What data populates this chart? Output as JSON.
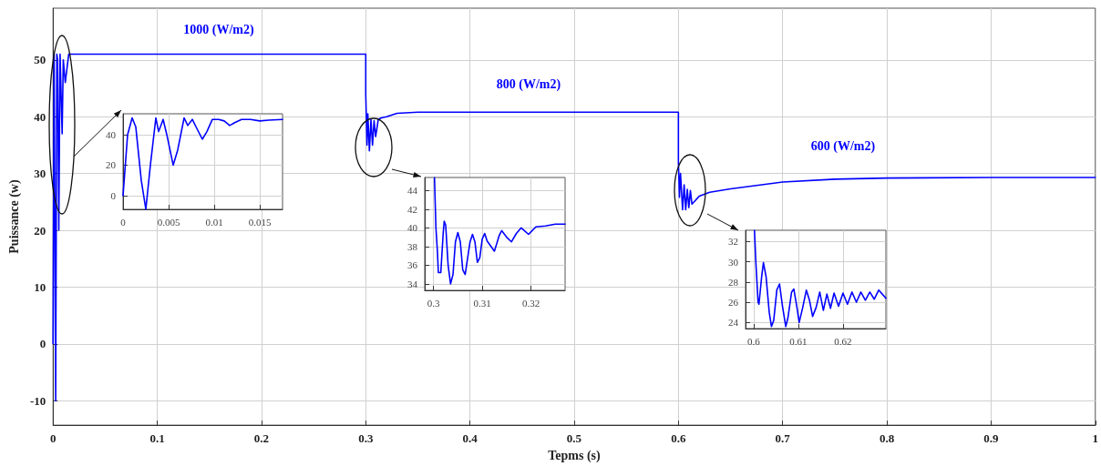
{
  "chart_data": [
    {
      "type": "line",
      "xlabel": "Tepms (s)",
      "ylabel": "Puissance (w)",
      "xlim": [
        0,
        1
      ],
      "ylim": [
        -14.3,
        59.1
      ],
      "xticks": [
        0,
        0.1,
        0.2,
        0.3,
        0.4,
        0.5,
        0.6,
        0.7,
        0.8,
        0.9,
        1
      ],
      "yticks": [
        -10,
        0,
        10,
        20,
        30,
        40,
        50
      ],
      "grid": true,
      "marker": "none",
      "line_style": "solid",
      "annotations": [
        "1000 (W/m2)",
        "800 (W/m2)",
        "600 (W/m2)"
      ],
      "series": [
        {
          "color": "#0000ff",
          "x": [
            0,
            0.001,
            0.0025,
            0.0036,
            0.0044,
            0.0055,
            0.0067,
            0.0087,
            0.0098,
            0.0117,
            0.015,
            0.3,
            0.3,
            0.3012,
            0.302,
            0.3035,
            0.305,
            0.3065,
            0.308,
            0.3095,
            0.312,
            0.315,
            0.32,
            0.33,
            0.35,
            0.6,
            0.6,
            0.601,
            0.602,
            0.604,
            0.6055,
            0.607,
            0.6085,
            0.61,
            0.6115,
            0.613,
            0.62,
            0.63,
            0.65,
            0.7,
            0.75,
            0.8,
            0.9,
            1
          ],
          "values": [
            0,
            51,
            -10,
            51,
            50,
            20,
            51,
            37,
            50,
            46,
            51,
            51,
            44,
            35,
            40.5,
            34,
            39.5,
            35,
            39.3,
            36.5,
            39.5,
            39.8,
            40,
            40.6,
            40.8,
            40.8,
            32,
            25.8,
            30,
            23.6,
            28,
            23.6,
            27.2,
            24,
            27,
            24.6,
            26,
            26.7,
            27.3,
            28.5,
            29,
            29.2,
            29.3,
            29.3
          ]
        }
      ]
    },
    {
      "type": "line",
      "xlim": [
        0,
        0.0175
      ],
      "ylim": [
        -9,
        53.7
      ],
      "xticks": [
        0,
        0.005,
        0.01,
        0.015
      ],
      "yticks": [
        0,
        20,
        40
      ],
      "grid": true,
      "marker": "none",
      "line_style": "solid",
      "series": [
        {
          "color": "#0000ff",
          "x": [
            0,
            0.0005,
            0.001,
            0.0014,
            0.002,
            0.0025,
            0.003,
            0.0036,
            0.0039,
            0.0044,
            0.0048,
            0.0055,
            0.006,
            0.0067,
            0.0071,
            0.0076,
            0.0081,
            0.0087,
            0.0092,
            0.0098,
            0.0105,
            0.0111,
            0.0117,
            0.0123,
            0.013,
            0.014,
            0.015,
            0.016,
            0.0175
          ],
          "values": [
            0,
            40,
            51,
            45,
            10,
            -9,
            20,
            51,
            42,
            50,
            40,
            20,
            30,
            51,
            46,
            50,
            44,
            37,
            42,
            50,
            50,
            49,
            46,
            48,
            50,
            50,
            49,
            49.5,
            50
          ]
        }
      ]
    },
    {
      "type": "line",
      "xlim": [
        0.2982,
        0.327
      ],
      "ylim": [
        33.3,
        45.4
      ],
      "xticks": [
        0.3,
        0.31,
        0.32
      ],
      "yticks": [
        34,
        36,
        38,
        40,
        42,
        44
      ],
      "grid": true,
      "marker": "none",
      "line_style": "solid",
      "series": [
        {
          "color": "#0000ff",
          "x": [
            0.3002,
            0.3005,
            0.3008,
            0.301,
            0.3015,
            0.302,
            0.3022,
            0.3025,
            0.303,
            0.3035,
            0.304,
            0.3045,
            0.305,
            0.3055,
            0.306,
            0.3065,
            0.3075,
            0.308,
            0.3085,
            0.309,
            0.3095,
            0.31,
            0.3105,
            0.311,
            0.3125,
            0.3135,
            0.314,
            0.315,
            0.316,
            0.317,
            0.318,
            0.3195,
            0.321,
            0.323,
            0.325,
            0.327
          ],
          "values": [
            45.4,
            40,
            37.5,
            35.2,
            35.2,
            39.5,
            40.7,
            40.3,
            36,
            34,
            35,
            38.5,
            39.5,
            38.5,
            35.5,
            35,
            38.5,
            39.3,
            38.5,
            36.3,
            36.8,
            38.8,
            39.4,
            38.6,
            37.5,
            39.2,
            39.7,
            39,
            38.5,
            39.4,
            40,
            39.3,
            40.1,
            40.2,
            40.4,
            40.4
          ]
        }
      ]
    },
    {
      "type": "line",
      "xlim": [
        0.5982,
        0.6296
      ],
      "ylim": [
        23.4,
        33.1
      ],
      "xticks": [
        0.6,
        0.61,
        0.62
      ],
      "yticks": [
        24,
        26,
        28,
        30,
        32
      ],
      "grid": true,
      "marker": "none",
      "line_style": "solid",
      "series": [
        {
          "color": "#0000ff",
          "x": [
            0.6002,
            0.6005,
            0.601,
            0.6012,
            0.6018,
            0.6022,
            0.6028,
            0.6035,
            0.604,
            0.6045,
            0.6052,
            0.6058,
            0.6065,
            0.6072,
            0.6077,
            0.6085,
            0.609,
            0.6097,
            0.6102,
            0.611,
            0.6118,
            0.6125,
            0.6132,
            0.614,
            0.6148,
            0.6156,
            0.6164,
            0.6172,
            0.618,
            0.619,
            0.62,
            0.621,
            0.622,
            0.623,
            0.624,
            0.625,
            0.626,
            0.627,
            0.628,
            0.6296
          ],
          "values": [
            33.1,
            30,
            26,
            25.8,
            28.5,
            29.9,
            28.5,
            25,
            23.6,
            24.2,
            27.2,
            27.8,
            25.5,
            23.6,
            24.5,
            27,
            27.3,
            25.5,
            24,
            25.5,
            27.2,
            26.2,
            24.6,
            25.5,
            27,
            25.2,
            26.8,
            25.4,
            26.9,
            25.6,
            26.9,
            25.8,
            27,
            26,
            27,
            26.2,
            27,
            26.3,
            27.2,
            26.4
          ]
        }
      ]
    }
  ]
}
